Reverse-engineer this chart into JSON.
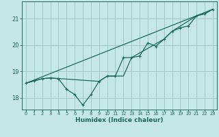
{
  "xlabel": "Humidex (Indice chaleur)",
  "background_color": "#c5e8e5",
  "grid_color": "#a0c8c5",
  "line_color": "#1a6b5a",
  "xlim": [
    -0.5,
    23.5
  ],
  "ylim": [
    17.55,
    21.65
  ],
  "yticks": [
    18,
    19,
    20,
    21
  ],
  "xticks": [
    0,
    1,
    2,
    3,
    4,
    5,
    6,
    7,
    8,
    9,
    10,
    11,
    12,
    13,
    14,
    15,
    16,
    17,
    18,
    19,
    20,
    21,
    22,
    23
  ],
  "line1_x": [
    0,
    1,
    2,
    3,
    4,
    5,
    6,
    7,
    8,
    9,
    10,
    11,
    12,
    13,
    14,
    15,
    16,
    17,
    18,
    19,
    20,
    21,
    22,
    23
  ],
  "line1_y": [
    18.55,
    18.65,
    18.72,
    18.75,
    18.72,
    18.32,
    18.12,
    17.72,
    18.12,
    18.62,
    18.82,
    18.82,
    19.52,
    19.52,
    19.58,
    20.08,
    19.95,
    20.22,
    20.52,
    20.65,
    20.72,
    21.1,
    21.18,
    21.35
  ],
  "line2_x": [
    0,
    23
  ],
  "line2_y": [
    18.55,
    21.35
  ],
  "line3_x": [
    0,
    2,
    3,
    9,
    10,
    12,
    13,
    17,
    18,
    21,
    22,
    23
  ],
  "line3_y": [
    18.55,
    18.72,
    18.75,
    18.62,
    18.82,
    18.82,
    19.52,
    20.22,
    20.52,
    21.1,
    21.18,
    21.35
  ]
}
